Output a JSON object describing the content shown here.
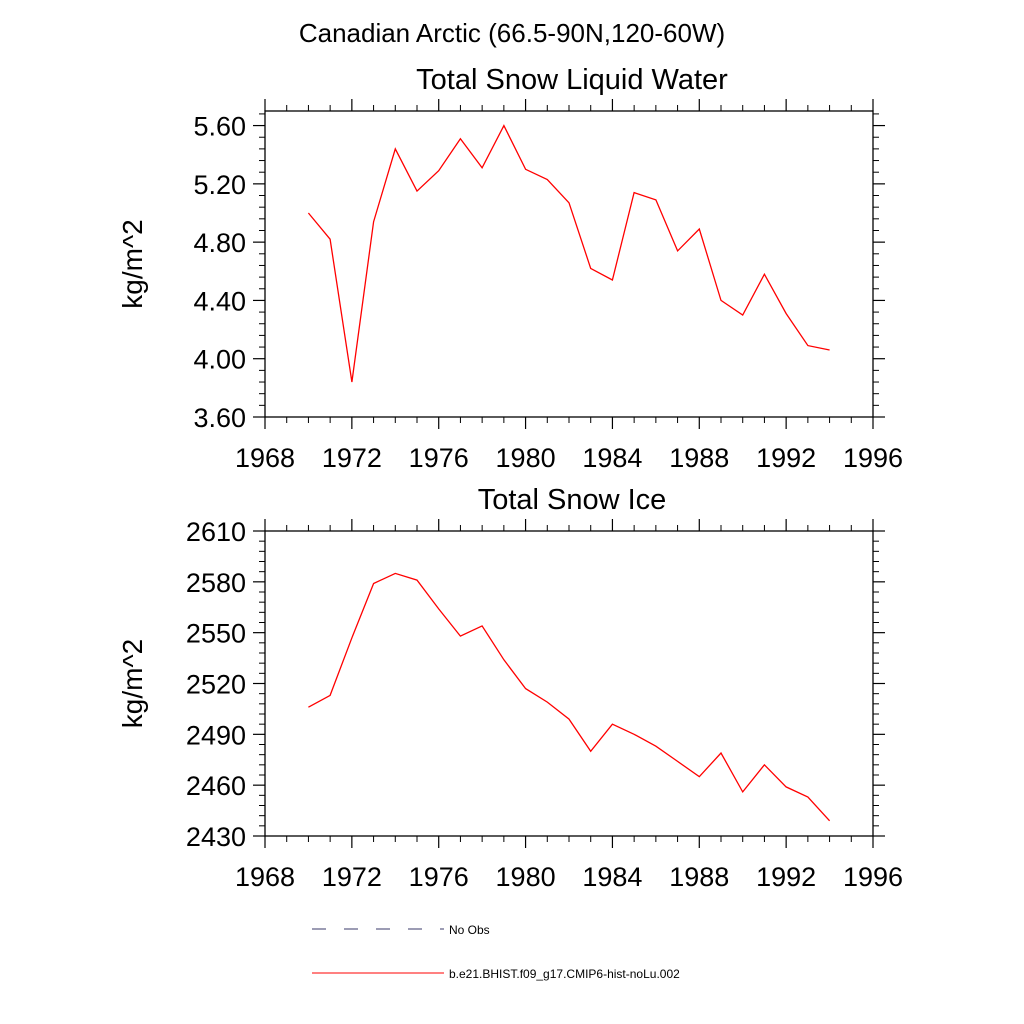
{
  "suptitle": "Canadian Arctic (66.5-90N,120-60W)",
  "colors": {
    "model_line": "#ff0000",
    "obs_line": "#3a3a6a",
    "axis": "#000000"
  },
  "legend": {
    "items": [
      {
        "label": "No Obs",
        "style": "dashed",
        "color": "#3a3a6a"
      },
      {
        "label": "b.e21.BHIST.f09_g17.CMIP6-hist-noLu.002",
        "style": "solid",
        "color": "#ff0000"
      }
    ]
  },
  "chart_data": [
    {
      "type": "line",
      "title": "Total Snow Liquid Water",
      "ylabel": "kg/m^2",
      "xlabel": "",
      "xlim": [
        1968,
        1996
      ],
      "ylim": [
        3.6,
        5.7
      ],
      "xticks": [
        "1968",
        "1972",
        "1976",
        "1980",
        "1984",
        "1988",
        "1992",
        "1996"
      ],
      "yticks": [
        "3.60",
        "4.00",
        "4.40",
        "4.80",
        "5.20",
        "5.60"
      ],
      "series": [
        {
          "name": "b.e21.BHIST.f09_g17.CMIP6-hist-noLu.002",
          "x": [
            1970,
            1971,
            1972,
            1973,
            1974,
            1975,
            1976,
            1977,
            1978,
            1979,
            1980,
            1981,
            1982,
            1983,
            1984,
            1985,
            1986,
            1987,
            1988,
            1989,
            1990,
            1991,
            1992,
            1993,
            1994
          ],
          "values": [
            5.0,
            4.82,
            3.84,
            4.94,
            5.44,
            5.15,
            5.29,
            5.51,
            5.31,
            5.6,
            5.3,
            5.23,
            5.07,
            4.62,
            4.54,
            5.14,
            5.09,
            4.74,
            4.89,
            4.4,
            4.3,
            4.58,
            4.31,
            4.09,
            4.06
          ]
        }
      ]
    },
    {
      "type": "line",
      "title": "Total Snow Ice",
      "ylabel": "kg/m^2",
      "xlabel": "",
      "xlim": [
        1968,
        1996
      ],
      "ylim": [
        2430,
        2610
      ],
      "xticks": [
        "1968",
        "1972",
        "1976",
        "1980",
        "1984",
        "1988",
        "1992",
        "1996"
      ],
      "yticks": [
        "2430",
        "2460",
        "2490",
        "2520",
        "2550",
        "2580",
        "2610"
      ],
      "series": [
        {
          "name": "b.e21.BHIST.f09_g17.CMIP6-hist-noLu.002",
          "x": [
            1970,
            1971,
            1972,
            1973,
            1974,
            1975,
            1976,
            1977,
            1978,
            1979,
            1980,
            1981,
            1982,
            1983,
            1984,
            1985,
            1986,
            1987,
            1988,
            1989,
            1990,
            1991,
            1992,
            1993,
            1994
          ],
          "values": [
            2506,
            2513,
            2547,
            2579,
            2585,
            2581,
            2564,
            2548,
            2554,
            2534,
            2517,
            2509,
            2499,
            2480,
            2496,
            2490,
            2483,
            2474,
            2465,
            2479,
            2456,
            2472,
            2459,
            2453,
            2439
          ]
        }
      ]
    }
  ]
}
